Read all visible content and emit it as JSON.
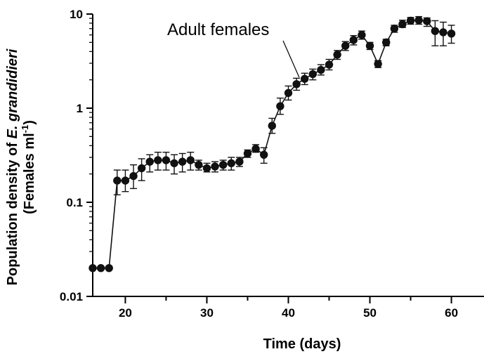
{
  "chart_data": {
    "type": "line",
    "title": "",
    "xlabel": "Time (days)",
    "ylabel_line1_prefix": "Population density of ",
    "ylabel_line1_species": "E. grandidieri",
    "ylabel_line2_main": "(Females ml",
    "ylabel_line2_sup": "-1",
    "ylabel_line2_close": ")",
    "x_scale": "linear",
    "y_scale": "log",
    "xlim": [
      16,
      64
    ],
    "ylim": [
      0.01,
      10
    ],
    "x_ticks": [
      20,
      30,
      40,
      50,
      60
    ],
    "y_ticks": [
      0.01,
      0.1,
      1,
      10
    ],
    "y_tick_labels": [
      "0.01",
      "0.1",
      "1",
      "10"
    ],
    "grid": false,
    "legend": "none",
    "annotations": [
      {
        "text": "Adult females",
        "points_to": {
          "x": 41.5,
          "y": 2.2
        }
      }
    ],
    "series": [
      {
        "name": "Adult females",
        "color": "#111111",
        "marker": "circle",
        "x": [
          16,
          17,
          18,
          19,
          20,
          21,
          22,
          23,
          24,
          25,
          26,
          27,
          28,
          29,
          30,
          31,
          32,
          33,
          34,
          35,
          36,
          37,
          38,
          39,
          40,
          41,
          42,
          43,
          44,
          45,
          46,
          47,
          48,
          49,
          50,
          51,
          52,
          53,
          54,
          55,
          56,
          57,
          58,
          59,
          60
        ],
        "y": [
          0.02,
          0.02,
          0.02,
          0.17,
          0.17,
          0.19,
          0.23,
          0.27,
          0.28,
          0.28,
          0.26,
          0.27,
          0.28,
          0.25,
          0.23,
          0.24,
          0.25,
          0.26,
          0.27,
          0.33,
          0.37,
          0.32,
          0.65,
          1.05,
          1.45,
          1.8,
          2.05,
          2.3,
          2.55,
          2.9,
          3.7,
          4.6,
          5.3,
          6.0,
          4.6,
          2.95,
          5.0,
          7.0,
          7.8,
          8.5,
          8.6,
          8.4,
          6.6,
          6.4,
          6.2
        ],
        "y_err_low": [
          0,
          0,
          0,
          0.12,
          0.13,
          0.14,
          0.17,
          0.21,
          0.22,
          0.22,
          0.2,
          0.21,
          0.22,
          0.22,
          0.21,
          0.21,
          0.22,
          0.22,
          0.24,
          0.3,
          0.34,
          0.26,
          0.54,
          0.86,
          1.22,
          1.55,
          1.78,
          2.0,
          2.25,
          2.55,
          3.3,
          4.1,
          4.7,
          5.4,
          4.2,
          2.7,
          4.6,
          6.4,
          7.2,
          7.8,
          7.8,
          7.4,
          4.6,
          4.6,
          4.9
        ],
        "y_err_high": [
          0,
          0,
          0,
          0.22,
          0.22,
          0.25,
          0.29,
          0.32,
          0.34,
          0.34,
          0.32,
          0.33,
          0.34,
          0.28,
          0.26,
          0.27,
          0.28,
          0.3,
          0.3,
          0.36,
          0.41,
          0.38,
          0.78,
          1.28,
          1.72,
          2.08,
          2.35,
          2.6,
          2.9,
          3.3,
          4.1,
          5.1,
          5.9,
          6.6,
          5.0,
          3.2,
          5.4,
          7.6,
          8.6,
          9.2,
          9.4,
          9.1,
          8.5,
          8.2,
          7.6
        ]
      }
    ]
  }
}
